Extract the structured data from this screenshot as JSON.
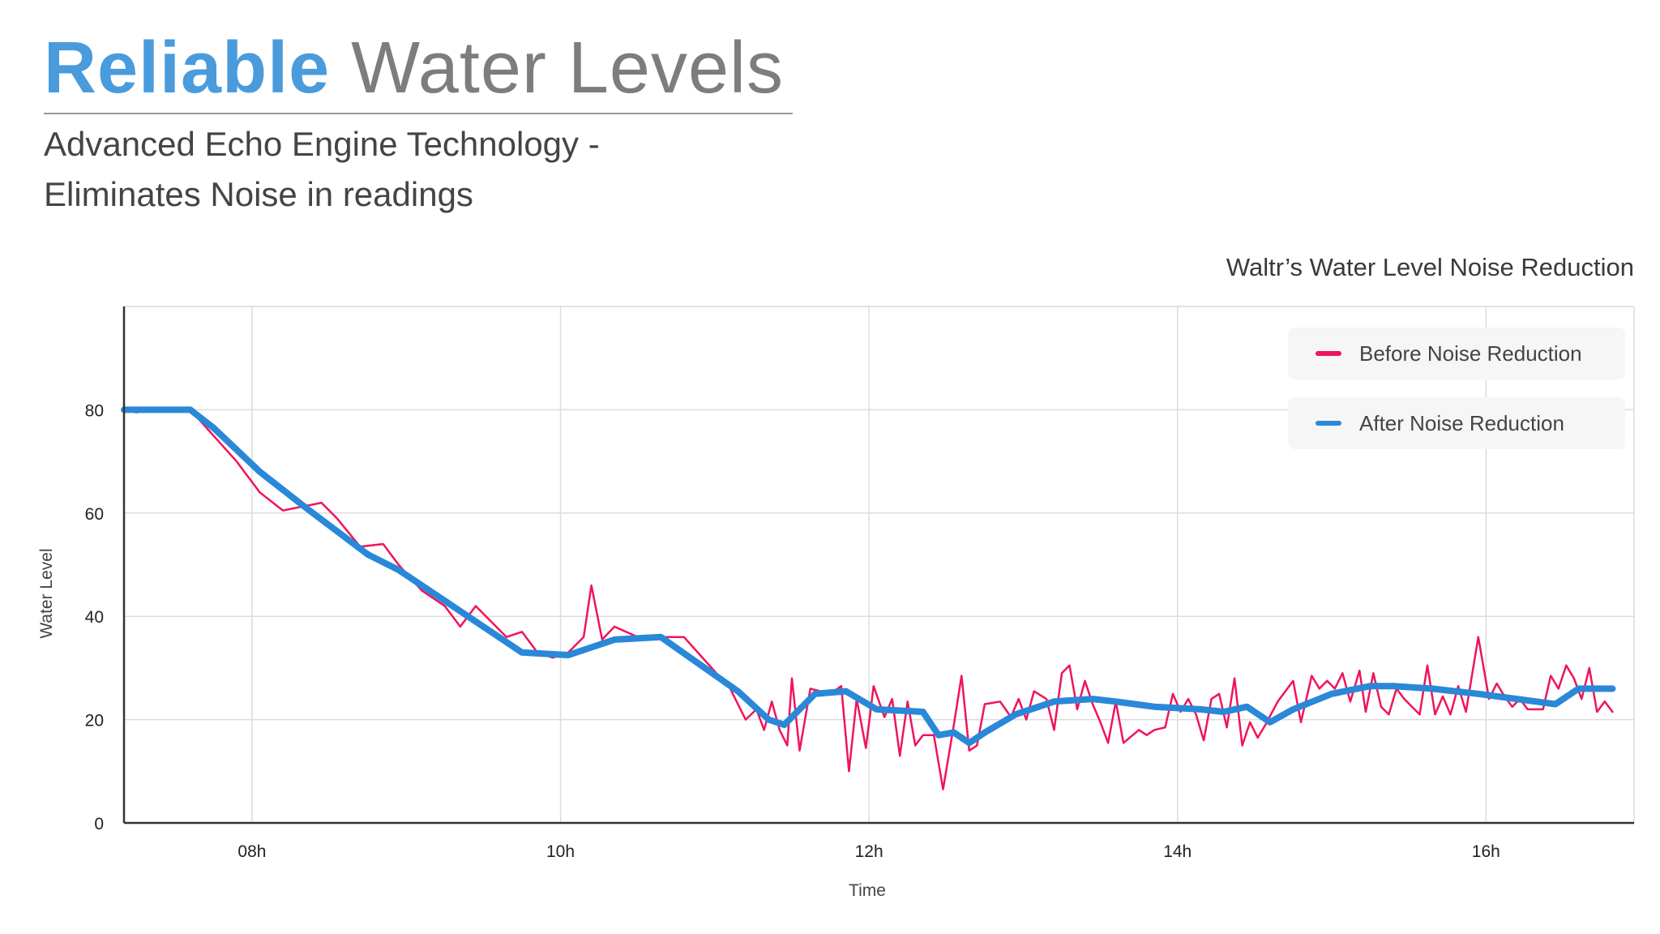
{
  "page": {
    "title_accent": "Reliable",
    "title_rest": "Water Levels",
    "subtitle_line1": "Advanced Echo Engine Technology -",
    "subtitle_line2": "Eliminates Noise in readings"
  },
  "colors": {
    "accent": "#4a9bdc",
    "before": "#f0145a",
    "after": "#2a88d8",
    "grid": "#dcdcdc",
    "axis": "#333333"
  },
  "chart_data": {
    "type": "line",
    "title": "Waltr’s Water Level Noise Reduction",
    "xlabel": "Time",
    "ylabel": "Water Level",
    "xlim": [
      7.17,
      16.96
    ],
    "ylim": [
      0,
      100
    ],
    "grid": true,
    "legend_position": "top-right",
    "x_ticks": [
      8,
      10,
      12,
      14,
      16
    ],
    "x_tick_labels": [
      "08h",
      "10h",
      "12h",
      "14h",
      "16h"
    ],
    "y_ticks": [
      0,
      20,
      40,
      60,
      80
    ],
    "y_tick_labels": [
      "0",
      "20",
      "40",
      "60",
      "80"
    ],
    "series": [
      {
        "name": "Before Noise Reduction",
        "points": [
          [
            7.17,
            80
          ],
          [
            7.25,
            79.5
          ],
          [
            7.35,
            80.2
          ],
          [
            7.6,
            80
          ],
          [
            7.75,
            75
          ],
          [
            7.9,
            70
          ],
          [
            8.05,
            64
          ],
          [
            8.2,
            60.5
          ],
          [
            8.45,
            62
          ],
          [
            8.55,
            59
          ],
          [
            8.7,
            53.5
          ],
          [
            8.85,
            54
          ],
          [
            8.95,
            50
          ],
          [
            9.1,
            45
          ],
          [
            9.25,
            42
          ],
          [
            9.35,
            38
          ],
          [
            9.45,
            42
          ],
          [
            9.55,
            39
          ],
          [
            9.65,
            36
          ],
          [
            9.75,
            37
          ],
          [
            9.85,
            33
          ],
          [
            9.95,
            32
          ],
          [
            10.05,
            33
          ],
          [
            10.15,
            36
          ],
          [
            10.2,
            46
          ],
          [
            10.27,
            35.5
          ],
          [
            10.35,
            38
          ],
          [
            10.5,
            36
          ],
          [
            10.7,
            36
          ],
          [
            10.8,
            36
          ],
          [
            10.95,
            31
          ],
          [
            11.1,
            26
          ],
          [
            11.2,
            20
          ],
          [
            11.27,
            22
          ],
          [
            11.32,
            18
          ],
          [
            11.37,
            23.5
          ],
          [
            11.42,
            18
          ],
          [
            11.47,
            15
          ],
          [
            11.5,
            28
          ],
          [
            11.55,
            14
          ],
          [
            11.62,
            26
          ],
          [
            11.75,
            25
          ],
          [
            11.82,
            26.5
          ],
          [
            11.87,
            10
          ],
          [
            11.92,
            24
          ],
          [
            11.98,
            14.5
          ],
          [
            12.03,
            26.5
          ],
          [
            12.1,
            20.5
          ],
          [
            12.15,
            24
          ],
          [
            12.2,
            13
          ],
          [
            12.25,
            23.5
          ],
          [
            12.3,
            15
          ],
          [
            12.35,
            17
          ],
          [
            12.42,
            17
          ],
          [
            12.48,
            6.5
          ],
          [
            12.55,
            19
          ],
          [
            12.6,
            28.5
          ],
          [
            12.65,
            14
          ],
          [
            12.7,
            15
          ],
          [
            12.75,
            23
          ],
          [
            12.85,
            23.5
          ],
          [
            12.92,
            20.5
          ],
          [
            12.97,
            24
          ],
          [
            13.02,
            20
          ],
          [
            13.07,
            25.5
          ],
          [
            13.15,
            24
          ],
          [
            13.2,
            18
          ],
          [
            13.25,
            29
          ],
          [
            13.3,
            30.5
          ],
          [
            13.35,
            22
          ],
          [
            13.4,
            27.5
          ],
          [
            13.45,
            23
          ],
          [
            13.5,
            19.5
          ],
          [
            13.55,
            15.5
          ],
          [
            13.6,
            23.5
          ],
          [
            13.65,
            15.5
          ],
          [
            13.75,
            18
          ],
          [
            13.8,
            17
          ],
          [
            13.85,
            18
          ],
          [
            13.92,
            18.5
          ],
          [
            13.97,
            25
          ],
          [
            14.02,
            21.5
          ],
          [
            14.07,
            24
          ],
          [
            14.12,
            21
          ],
          [
            14.17,
            16
          ],
          [
            14.22,
            24
          ],
          [
            14.27,
            25
          ],
          [
            14.32,
            18.5
          ],
          [
            14.37,
            28
          ],
          [
            14.42,
            15
          ],
          [
            14.47,
            19.5
          ],
          [
            14.52,
            16.5
          ],
          [
            14.57,
            19
          ],
          [
            14.65,
            23.5
          ],
          [
            14.75,
            27.5
          ],
          [
            14.8,
            19.5
          ],
          [
            14.87,
            28.5
          ],
          [
            14.92,
            26
          ],
          [
            14.97,
            27.5
          ],
          [
            15.02,
            26
          ],
          [
            15.07,
            29
          ],
          [
            15.12,
            23.5
          ],
          [
            15.18,
            29.5
          ],
          [
            15.22,
            21.5
          ],
          [
            15.27,
            29
          ],
          [
            15.32,
            22.5
          ],
          [
            15.37,
            21
          ],
          [
            15.42,
            26
          ],
          [
            15.47,
            24
          ],
          [
            15.52,
            22.5
          ],
          [
            15.57,
            21
          ],
          [
            15.62,
            30.5
          ],
          [
            15.67,
            21
          ],
          [
            15.72,
            24.5
          ],
          [
            15.77,
            21
          ],
          [
            15.82,
            26.5
          ],
          [
            15.87,
            21.5
          ],
          [
            15.95,
            36
          ],
          [
            16.02,
            24
          ],
          [
            16.07,
            27
          ],
          [
            16.12,
            24.5
          ],
          [
            16.17,
            22.5
          ],
          [
            16.22,
            24
          ],
          [
            16.27,
            22
          ],
          [
            16.37,
            22
          ],
          [
            16.42,
            28.5
          ],
          [
            16.47,
            26
          ],
          [
            16.52,
            30.5
          ],
          [
            16.57,
            28
          ],
          [
            16.62,
            24
          ],
          [
            16.67,
            30
          ],
          [
            16.72,
            21.5
          ],
          [
            16.77,
            23.5
          ],
          [
            16.82,
            21.5
          ]
        ]
      },
      {
        "name": "After Noise Reduction",
        "points": [
          [
            7.17,
            80
          ],
          [
            7.3,
            80
          ],
          [
            7.6,
            80
          ],
          [
            7.75,
            76.5
          ],
          [
            8.05,
            68
          ],
          [
            8.35,
            61
          ],
          [
            8.55,
            56.5
          ],
          [
            8.75,
            52
          ],
          [
            8.95,
            49
          ],
          [
            9.25,
            43
          ],
          [
            9.55,
            37
          ],
          [
            9.75,
            33
          ],
          [
            10.05,
            32.5
          ],
          [
            10.35,
            35.5
          ],
          [
            10.65,
            36
          ],
          [
            11.15,
            25.5
          ],
          [
            11.35,
            20
          ],
          [
            11.45,
            19
          ],
          [
            11.65,
            25
          ],
          [
            11.85,
            25.5
          ],
          [
            12.05,
            22
          ],
          [
            12.35,
            21.5
          ],
          [
            12.45,
            17
          ],
          [
            12.55,
            17.5
          ],
          [
            12.65,
            15.5
          ],
          [
            12.75,
            17.5
          ],
          [
            12.95,
            21
          ],
          [
            13.2,
            23.5
          ],
          [
            13.45,
            24
          ],
          [
            13.6,
            23.5
          ],
          [
            13.85,
            22.5
          ],
          [
            14.15,
            22
          ],
          [
            14.3,
            21.5
          ],
          [
            14.45,
            22.5
          ],
          [
            14.6,
            19.5
          ],
          [
            14.75,
            22
          ],
          [
            15.0,
            25
          ],
          [
            15.25,
            26.5
          ],
          [
            15.4,
            26.5
          ],
          [
            15.65,
            26
          ],
          [
            15.95,
            25
          ],
          [
            16.2,
            24
          ],
          [
            16.45,
            23
          ],
          [
            16.6,
            26
          ],
          [
            16.82,
            26
          ]
        ]
      }
    ]
  }
}
